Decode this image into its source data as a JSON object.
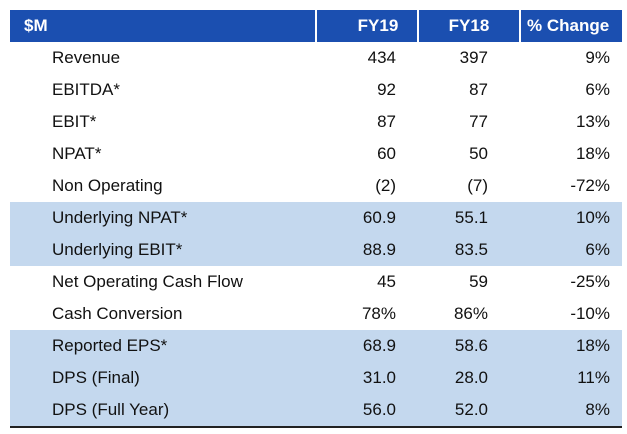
{
  "table": {
    "headers": {
      "label": "$M",
      "fy19": "FY19",
      "fy18": "FY18",
      "change": "% Change"
    },
    "rows": [
      {
        "label": "Revenue",
        "fy19": "434",
        "fy18": "397",
        "change": "9%",
        "shaded": false
      },
      {
        "label": "EBITDA*",
        "fy19": "92",
        "fy18": "87",
        "change": "6%",
        "shaded": false
      },
      {
        "label": "EBIT*",
        "fy19": "87",
        "fy18": "77",
        "change": "13%",
        "shaded": false
      },
      {
        "label": "NPAT*",
        "fy19": "60",
        "fy18": "50",
        "change": "18%",
        "shaded": false
      },
      {
        "label": "Non Operating",
        "fy19": "(2)",
        "fy18": "(7)",
        "change": "-72%",
        "shaded": false
      },
      {
        "label": "Underlying NPAT*",
        "fy19": "60.9",
        "fy18": "55.1",
        "change": "10%",
        "shaded": true
      },
      {
        "label": "Underlying EBIT*",
        "fy19": "88.9",
        "fy18": "83.5",
        "change": "6%",
        "shaded": true
      },
      {
        "label": "Net Operating Cash Flow",
        "fy19": "45",
        "fy18": "59",
        "change": "-25%",
        "shaded": false
      },
      {
        "label": "Cash Conversion",
        "fy19": "78%",
        "fy18": "86%",
        "change": "-10%",
        "shaded": false
      },
      {
        "label": "Reported EPS*",
        "fy19": "68.9",
        "fy18": "58.6",
        "change": "18%",
        "shaded": true
      },
      {
        "label": "DPS (Final)",
        "fy19": "31.0",
        "fy18": "28.0",
        "change": "11%",
        "shaded": true
      },
      {
        "label": "DPS (Full Year)",
        "fy19": "56.0",
        "fy18": "52.0",
        "change": "8%",
        "shaded": true
      }
    ]
  },
  "colors": {
    "header_bg": "#1b4fb0",
    "header_text": "#ffffff",
    "shaded_row_bg": "#c4d8ee",
    "body_text": "#111111"
  }
}
